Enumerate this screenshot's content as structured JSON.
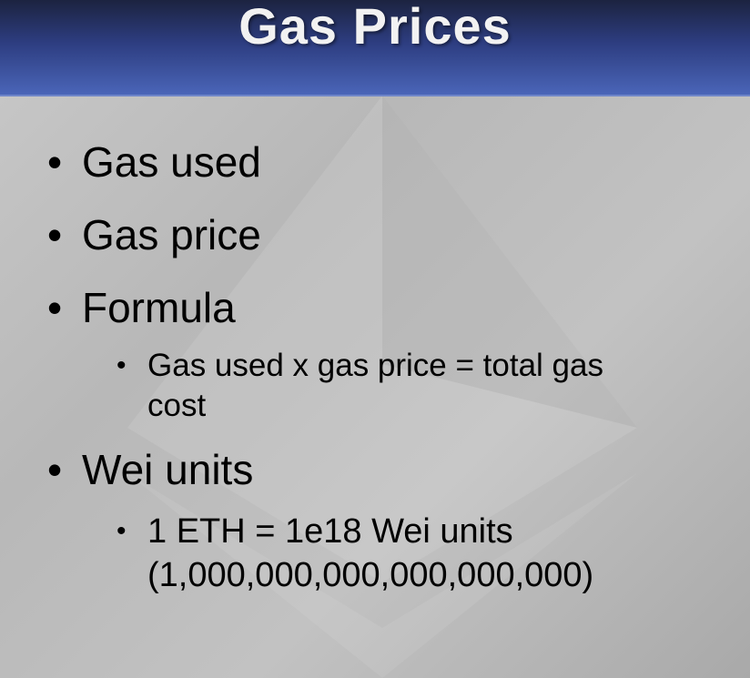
{
  "slide": {
    "title": "Gas Prices",
    "bullets": [
      {
        "text": "Gas used"
      },
      {
        "text": "Gas price"
      },
      {
        "text": "Formula",
        "sub": "Gas used x gas price = total gas cost"
      },
      {
        "text": "Wei units",
        "sub": "1 ETH = 1e18 Wei units (1,000,000,000,000,000,000)"
      }
    ],
    "bullet_glyph": "•",
    "colors": {
      "header": "#4a65b8",
      "background": "#c0c0c0",
      "text": "#000000",
      "title": "#f2f2f2"
    }
  }
}
